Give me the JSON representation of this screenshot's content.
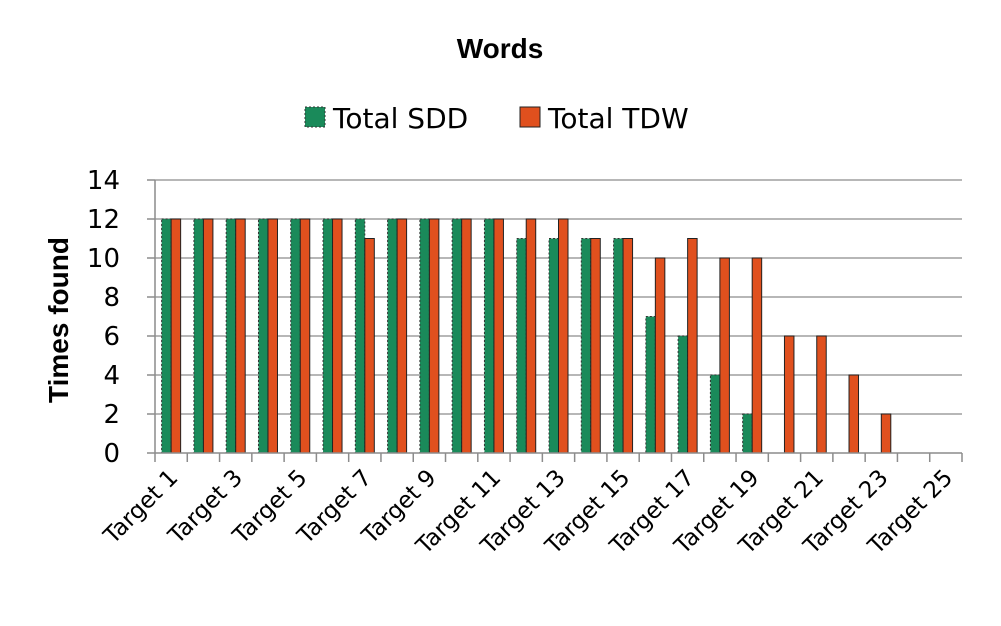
{
  "chart_data": {
    "type": "bar",
    "title": "Words",
    "ylabel": "Times found",
    "xlabel": "",
    "ylim": [
      0,
      14
    ],
    "yticks": [
      0,
      2,
      4,
      6,
      8,
      10,
      12,
      14
    ],
    "grid": true,
    "legend": "top",
    "categories": [
      "Target 1",
      "Target 2",
      "Target 3",
      "Target 4",
      "Target 5",
      "Target 6",
      "Target 7",
      "Target 8",
      "Target 9",
      "Target 10",
      "Target 11",
      "Target 12",
      "Target 13",
      "Target 14",
      "Target 15",
      "Target 16",
      "Target 17",
      "Target 18",
      "Target 19",
      "Target 20",
      "Target 21",
      "Target 22",
      "Target 23",
      "Target 24",
      "Target 25"
    ],
    "visible_tick_labels": [
      "Target 1",
      "Target 3",
      "Target 5",
      "Target 7",
      "Target 9",
      "Target 11",
      "Target 13",
      "Target 15",
      "Target 17",
      "Target 19",
      "Target 21",
      "Target 23",
      "Target 25"
    ],
    "series": [
      {
        "name": "Total SDD",
        "color": "#1a8a5a",
        "values": [
          12,
          12,
          12,
          12,
          12,
          12,
          12,
          12,
          12,
          12,
          12,
          11,
          11,
          11,
          11,
          7,
          6,
          4,
          2,
          0,
          0,
          0,
          0,
          0,
          0
        ]
      },
      {
        "name": "Total TDW",
        "color": "#e0501e",
        "values": [
          12,
          12,
          12,
          12,
          12,
          12,
          11,
          12,
          12,
          12,
          12,
          12,
          12,
          11,
          11,
          10,
          11,
          10,
          10,
          6,
          6,
          4,
          2,
          0,
          0
        ]
      }
    ]
  }
}
